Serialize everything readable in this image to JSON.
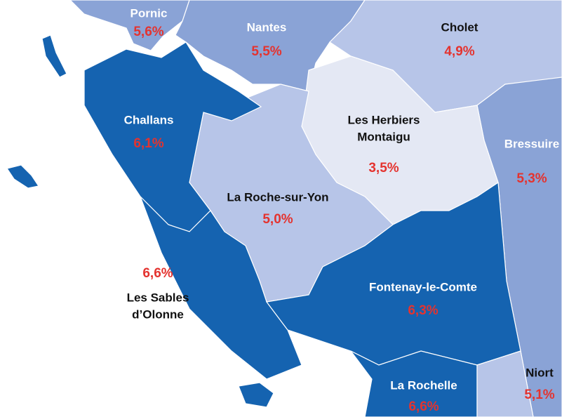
{
  "regions": [
    {
      "name": [
        "Pornic"
      ],
      "rate": "5,6%"
    },
    {
      "name": [
        "Nantes"
      ],
      "rate": "5,5%"
    },
    {
      "name": [
        "Cholet"
      ],
      "rate": "4,9%"
    },
    {
      "name": [
        "Challans"
      ],
      "rate": "6,1%"
    },
    {
      "name": [
        "Les Herbiers",
        "Montaigu"
      ],
      "rate": "3,5%"
    },
    {
      "name": [
        "Bressuire"
      ],
      "rate": "5,3%"
    },
    {
      "name": [
        "La Roche-sur-Yon"
      ],
      "rate": "5,0%"
    },
    {
      "name": [
        "Les Sables",
        "d’Olonne"
      ],
      "rate": "6,6%"
    },
    {
      "name": [
        "Fontenay-le-Comte"
      ],
      "rate": "6,3%"
    },
    {
      "name": [
        "La Rochelle"
      ],
      "rate": "6,6%"
    },
    {
      "name": [
        "Niort"
      ],
      "rate": "5,1%"
    }
  ]
}
